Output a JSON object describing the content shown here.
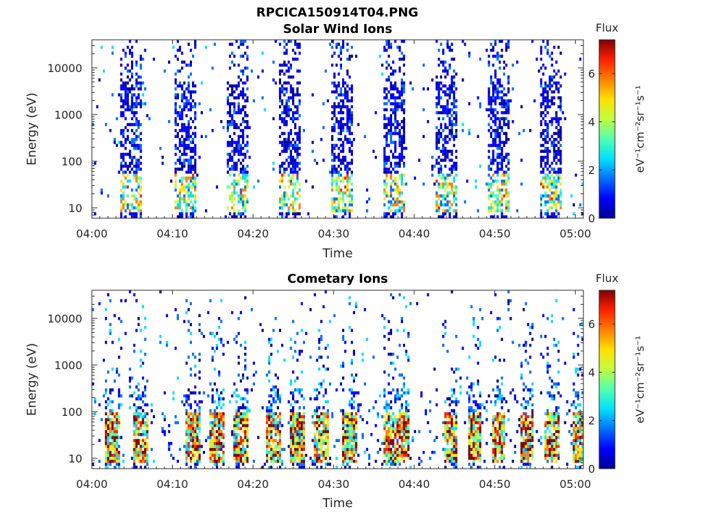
{
  "figure": {
    "filename": "RPCICA150914T04.PNG"
  },
  "colormap": [
    "#00008f",
    "#0000ff",
    "#0070ff",
    "#00e0ff",
    "#50ffaf",
    "#c0ff40",
    "#ffe000",
    "#ff8000",
    "#ff2000",
    "#800000"
  ],
  "chart_data": [
    {
      "type": "heatmap",
      "title": "Solar Wind Ions",
      "xlabel": "Time",
      "ylabel": "Energy (eV)",
      "xticks": [
        "04:00",
        "04:10",
        "04:20",
        "04:30",
        "04:40",
        "04:50",
        "05:00"
      ],
      "xlim_min": [
        0,
        61
      ],
      "yscale": "log",
      "yticks": [
        {
          "value": 10,
          "label": "10"
        },
        {
          "value": 100,
          "label": "100"
        },
        {
          "value": 1000,
          "label": "1000"
        },
        {
          "value": 10000,
          "label": "10000"
        }
      ],
      "ylim": [
        6,
        40000
      ],
      "colorbar": {
        "title": "Flux",
        "label": "eV⁻¹cm⁻²sr⁻¹s⁻¹",
        "ticks": [
          "0",
          "2",
          "4",
          "6"
        ],
        "range": [
          0,
          7.4
        ]
      },
      "bursts_min": [
        3.5,
        10.0,
        16.5,
        23.0,
        29.5,
        36.0,
        42.5,
        49.0,
        55.5
      ],
      "burst_duration_min": 2.7,
      "background_flux": 1,
      "peak_flux_low_energy": 4.5,
      "low_energy_peak_ev": [
        15,
        30
      ]
    },
    {
      "type": "heatmap",
      "title": "Cometary Ions",
      "xlabel": "Time",
      "ylabel": "Energy (eV)",
      "xticks": [
        "04:00",
        "04:10",
        "04:20",
        "04:30",
        "04:40",
        "04:50",
        "05:00"
      ],
      "xlim_min": [
        0,
        61
      ],
      "yscale": "log",
      "yticks": [
        {
          "value": 10,
          "label": "10"
        },
        {
          "value": 100,
          "label": "100"
        },
        {
          "value": 1000,
          "label": "1000"
        },
        {
          "value": 10000,
          "label": "10000"
        }
      ],
      "ylim": [
        6,
        40000
      ],
      "colorbar": {
        "title": "Flux",
        "label": "eV⁻¹cm⁻²sr⁻¹s⁻¹",
        "ticks": [
          "0",
          "2",
          "4",
          "6"
        ],
        "range": [
          0,
          7.4
        ]
      },
      "bursts_min": [
        1.5,
        5.0,
        11.5,
        14.5,
        17.5,
        21.5,
        24.5,
        27.5,
        31.0,
        36.0,
        37.5,
        43.5,
        46.5,
        49.5,
        53.0,
        56.0,
        59.5
      ],
      "burst_duration_min": 1.8,
      "background_flux": 1,
      "peak_flux_low_energy": 7,
      "low_energy_peak_ev": [
        15,
        60
      ]
    }
  ]
}
